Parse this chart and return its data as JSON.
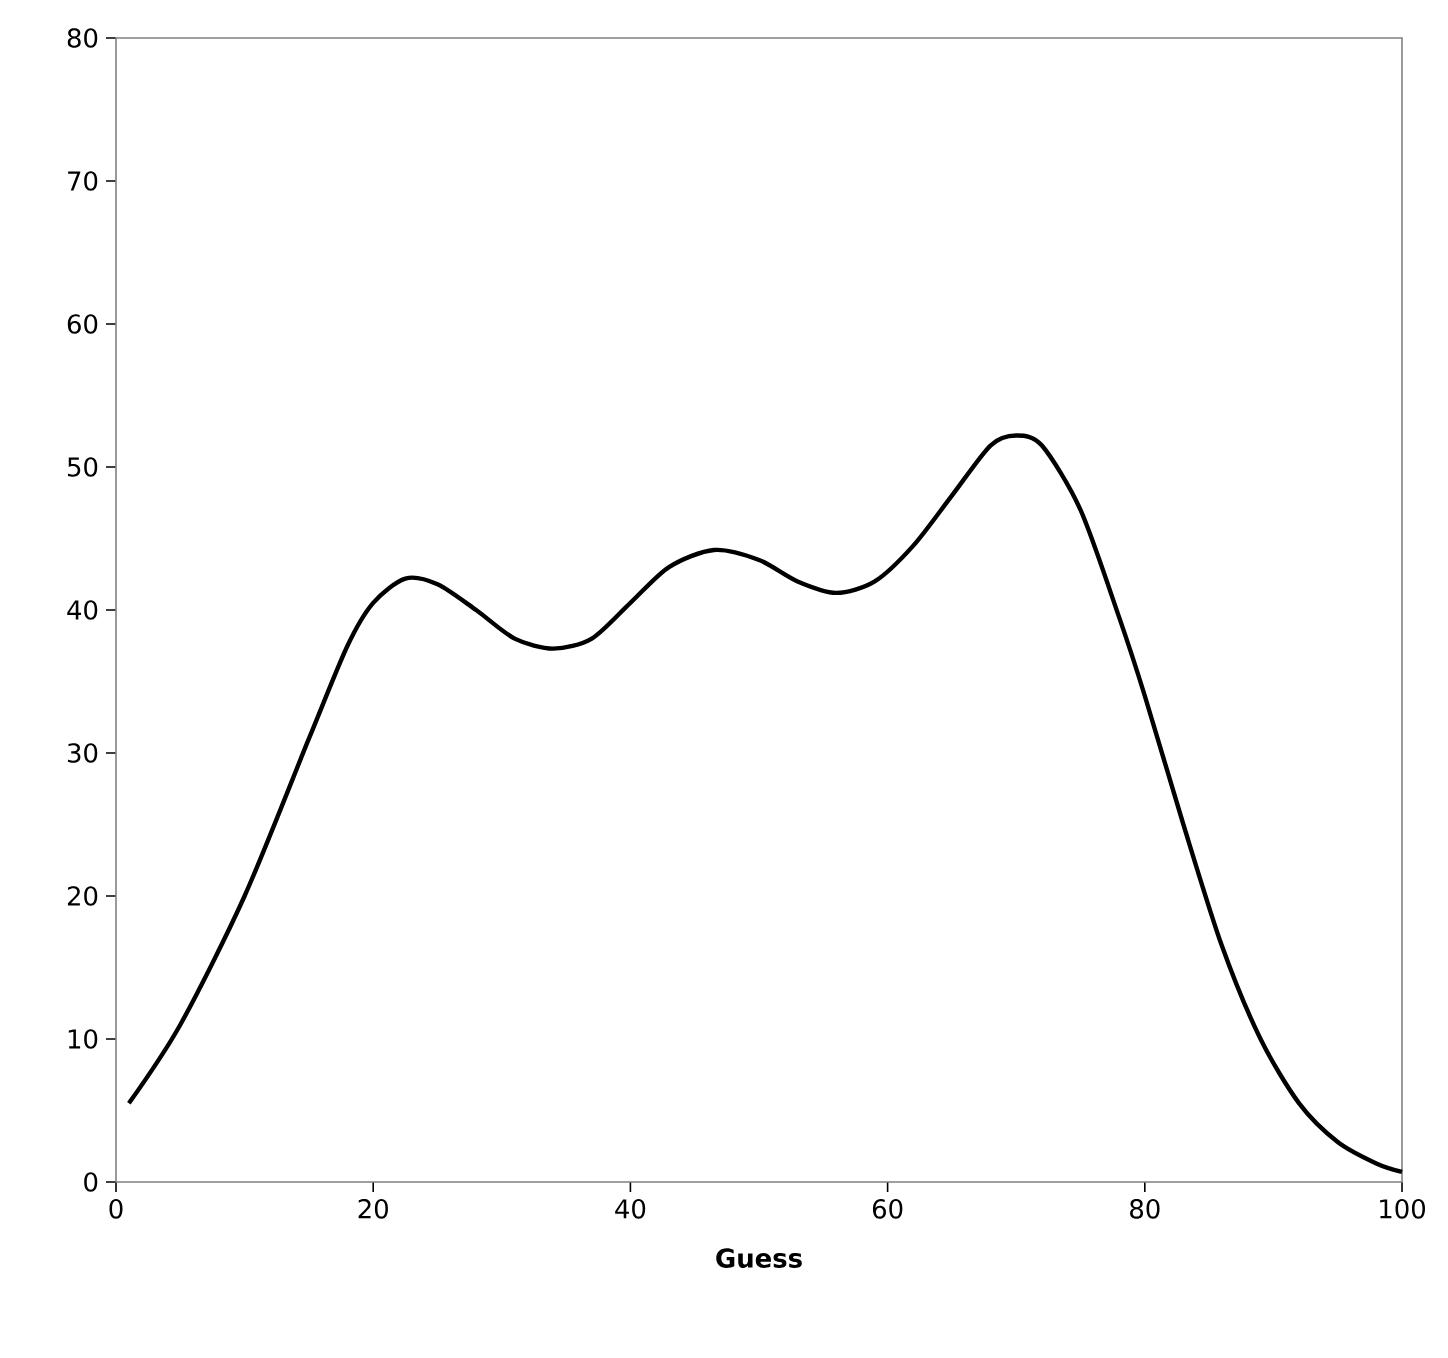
{
  "chart_data": {
    "type": "line",
    "xlabel": "Guess",
    "xlim": [
      0,
      100
    ],
    "xticks": [
      0,
      20,
      40,
      60,
      80,
      100
    ],
    "ylim": [
      0,
      80
    ],
    "yticks": [
      0,
      10,
      20,
      30,
      40,
      50,
      60,
      70,
      80
    ],
    "grid": false,
    "marker": "none",
    "line_style": "solid",
    "series": [
      {
        "color": "#000000",
        "x": [
          1,
          5,
          10,
          15,
          18,
          20,
          22.5,
          25,
          28,
          31,
          34,
          37,
          40,
          43,
          46.5,
          50,
          53,
          56,
          59,
          62,
          65,
          68,
          70,
          72,
          75,
          78,
          80,
          83,
          86,
          89,
          92,
          95,
          98,
          100
        ],
        "values": [
          5.5,
          11,
          20,
          31,
          37.5,
          40.5,
          42.2,
          41.8,
          40,
          38,
          37.3,
          38,
          40.5,
          43,
          44.2,
          43.5,
          42,
          41.2,
          42,
          44.5,
          48,
          51.5,
          52.2,
          51.5,
          47,
          39.5,
          34,
          25,
          16.5,
          10,
          5.5,
          2.8,
          1.3,
          0.7
        ]
      }
    ]
  }
}
